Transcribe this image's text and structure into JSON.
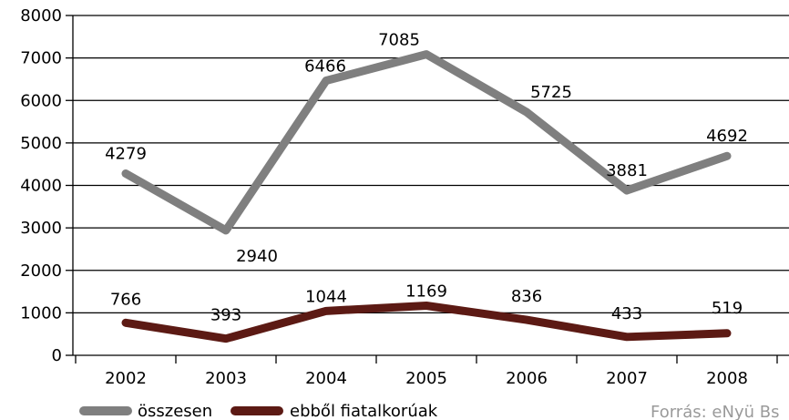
{
  "chart_data": {
    "type": "line",
    "title": "",
    "xlabel": "",
    "ylabel": "",
    "categories": [
      "2002",
      "2003",
      "2004",
      "2005",
      "2006",
      "2007",
      "2008"
    ],
    "ylim": [
      0,
      8000
    ],
    "yticks": [
      0,
      1000,
      2000,
      3000,
      4000,
      5000,
      6000,
      7000,
      8000
    ],
    "ytick_labels": [
      "0",
      "1000",
      "2000",
      "3000",
      "4000",
      "5000",
      "6000",
      "7000",
      "8000"
    ],
    "grid": true,
    "legend_position": "bottom-left",
    "series": [
      {
        "name": "összesen",
        "color": "#7f7f7f",
        "values": [
          4279,
          2940,
          6466,
          7085,
          5725,
          3881,
          4692
        ],
        "labels": [
          "4279",
          "2940",
          "6466",
          "7085",
          "5725",
          "3881",
          "4692"
        ]
      },
      {
        "name": "ebből fiatalkorúak",
        "color": "#5c1a14",
        "values": [
          766,
          393,
          1044,
          1169,
          836,
          433,
          519
        ],
        "labels": [
          "766",
          "393",
          "1044",
          "1169",
          "836",
          "433",
          "519"
        ]
      }
    ],
    "source": "Forrás: eNyü Bs"
  }
}
